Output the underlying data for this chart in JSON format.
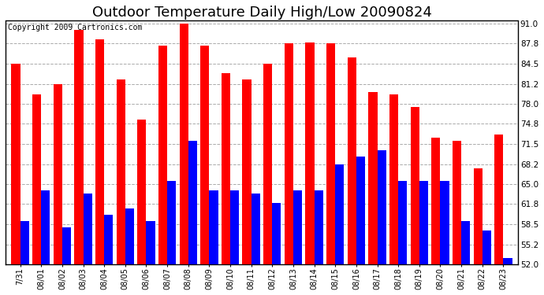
{
  "title": "Outdoor Temperature Daily High/Low 20090824",
  "copyright": "Copyright 2009 Cartronics.com",
  "categories": [
    "7/31",
    "08/01",
    "08/02",
    "08/03",
    "08/04",
    "08/05",
    "08/06",
    "08/07",
    "08/08",
    "08/09",
    "08/10",
    "08/11",
    "08/12",
    "08/13",
    "08/14",
    "08/15",
    "08/16",
    "08/17",
    "08/18",
    "08/19",
    "08/20",
    "08/21",
    "08/22",
    "08/23"
  ],
  "highs": [
    84.5,
    79.5,
    81.2,
    90.0,
    88.5,
    82.0,
    75.5,
    87.5,
    91.0,
    87.5,
    83.0,
    82.0,
    84.5,
    87.8,
    88.0,
    87.8,
    85.5,
    80.0,
    79.5,
    77.5,
    72.5,
    72.0,
    67.5,
    73.0
  ],
  "lows": [
    59.0,
    64.0,
    58.0,
    63.5,
    60.0,
    61.0,
    59.0,
    65.5,
    72.0,
    64.0,
    64.0,
    63.5,
    62.0,
    64.0,
    64.0,
    68.2,
    69.5,
    70.5,
    65.5,
    65.5,
    65.5,
    59.0,
    57.5,
    53.0
  ],
  "high_color": "#ff0000",
  "low_color": "#0000ff",
  "bg_color": "#ffffff",
  "grid_color": "#aaaaaa",
  "yticks": [
    52.0,
    55.2,
    58.5,
    61.8,
    65.0,
    68.2,
    71.5,
    74.8,
    78.0,
    81.2,
    84.5,
    87.8,
    91.0
  ],
  "ymin": 52.0,
  "ymax": 91.0,
  "title_fontsize": 13,
  "copyright_fontsize": 7,
  "bar_width": 0.42
}
